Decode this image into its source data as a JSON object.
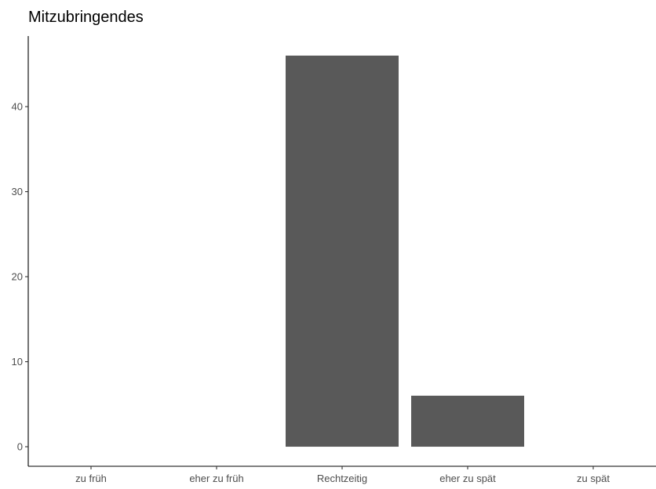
{
  "chart_data": {
    "type": "bar",
    "title": "Mitzubringendes",
    "xlabel": "",
    "ylabel": "",
    "categories": [
      "zu früh",
      "eher zu früh",
      "Rechtzeitig",
      "eher zu spät",
      "zu spät"
    ],
    "values": [
      0,
      0,
      46,
      6,
      0
    ],
    "ylim": [
      -2.3,
      48.3
    ],
    "yticks": [
      "0",
      "10",
      "20",
      "30",
      "40"
    ],
    "bar_color": "#595959",
    "grid": false,
    "legend": "none"
  }
}
